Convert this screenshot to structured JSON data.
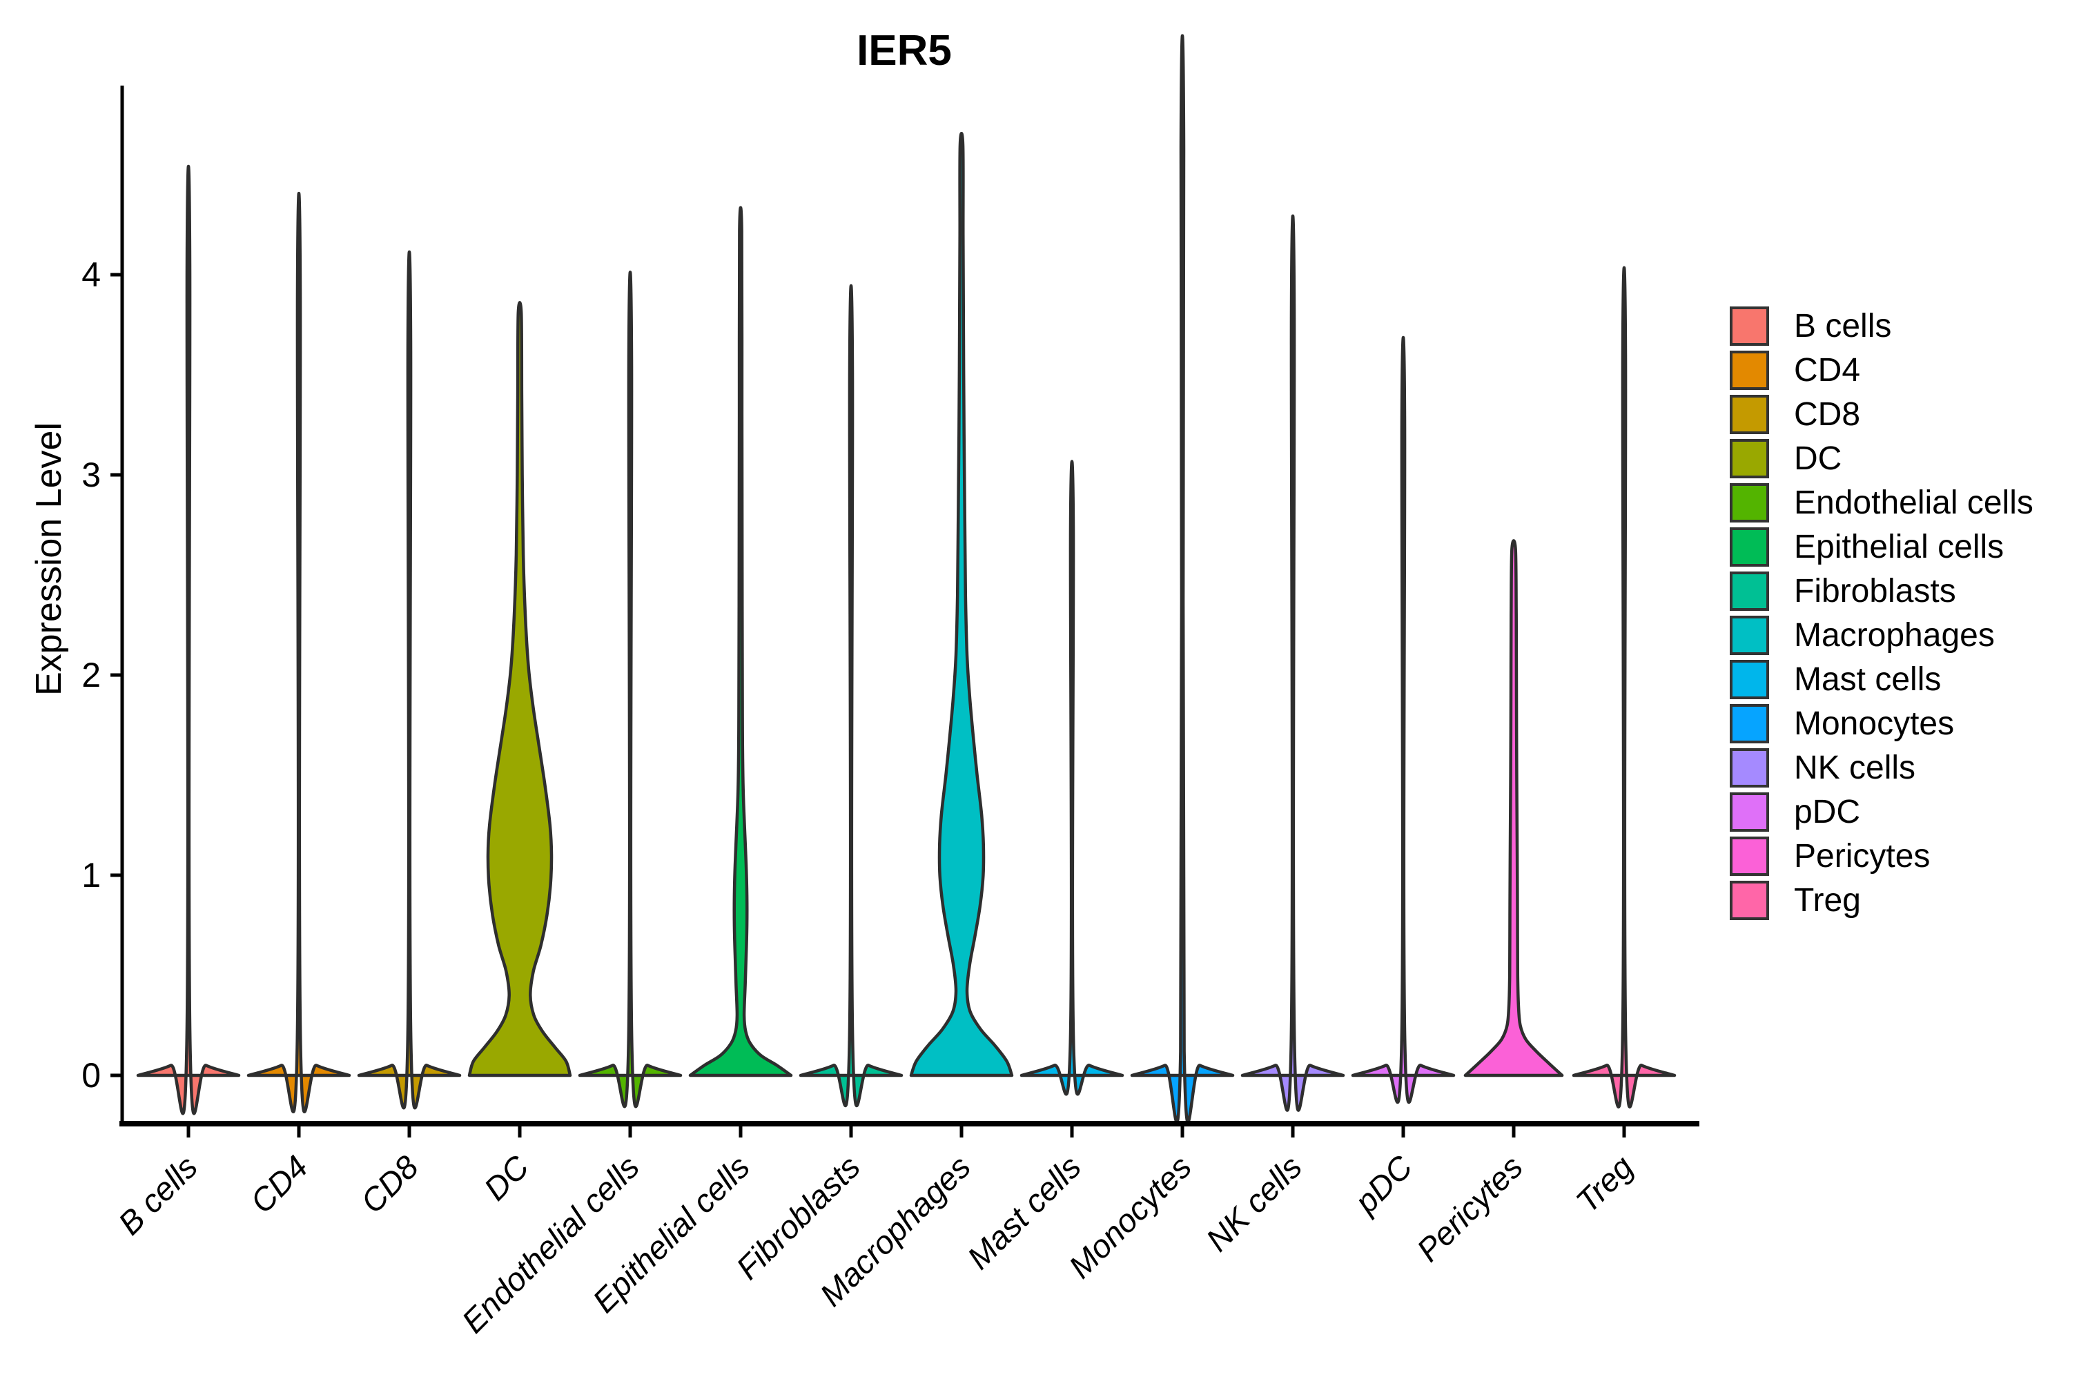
{
  "title": "IER5",
  "y_axis": {
    "label": "Expression Level",
    "tick_labels": [
      "0",
      "1",
      "2",
      "3",
      "4"
    ]
  },
  "colors": {
    "violin_stroke": "#2e2e2e",
    "axis": "#000000",
    "legend_swatch_border": "#333333"
  },
  "legend": {
    "items": [
      {
        "label": "B cells",
        "color": "#F8766D"
      },
      {
        "label": "CD4",
        "color": "#E38900"
      },
      {
        "label": "CD8",
        "color": "#C49A00"
      },
      {
        "label": "DC",
        "color": "#99A800"
      },
      {
        "label": "Endothelial cells",
        "color": "#53B400"
      },
      {
        "label": "Epithelial cells",
        "color": "#00BC56"
      },
      {
        "label": "Fibroblasts",
        "color": "#00C094"
      },
      {
        "label": "Macrophages",
        "color": "#00BFC4"
      },
      {
        "label": "Mast cells",
        "color": "#00B6EB"
      },
      {
        "label": "Monocytes",
        "color": "#06A4FF"
      },
      {
        "label": "NK cells",
        "color": "#A58AFF"
      },
      {
        "label": "pDC",
        "color": "#DF70F8"
      },
      {
        "label": "Pericytes",
        "color": "#FB61D7"
      },
      {
        "label": "Treg",
        "color": "#FF66A8"
      }
    ]
  },
  "chart_data": {
    "type": "violin",
    "title": "IER5",
    "xlabel": "",
    "ylabel": "Expression Level",
    "ylim": [
      -0.28,
      4.95
    ],
    "yticks": [
      0,
      1,
      2,
      3,
      4
    ],
    "grid": false,
    "legend_position": "right",
    "categories": [
      "B cells",
      "CD4",
      "CD8",
      "DC",
      "Endothelial cells",
      "Epithelial cells",
      "Fibroblasts",
      "Macrophages",
      "Mast cells",
      "Monocytes",
      "NK cells",
      "pDC",
      "Pericytes",
      "Treg"
    ],
    "series": [
      {
        "name": "B cells",
        "color": "#F8766D",
        "max_expression": 4.05,
        "profile": [
          [
            0,
            1
          ],
          [
            0.05,
            0.35
          ],
          [
            0.12,
            0.035
          ],
          [
            4.05,
            0.028
          ]
        ]
      },
      {
        "name": "CD4",
        "color": "#E38900",
        "max_expression": 3.93,
        "profile": [
          [
            0,
            1
          ],
          [
            0.05,
            0.35
          ],
          [
            0.12,
            0.035
          ],
          [
            3.93,
            0.028
          ]
        ]
      },
      {
        "name": "CD8",
        "color": "#C49A00",
        "max_expression": 3.67,
        "profile": [
          [
            0,
            1
          ],
          [
            0.05,
            0.35
          ],
          [
            0.12,
            0.035
          ],
          [
            3.67,
            0.028
          ]
        ]
      },
      {
        "name": "DC",
        "color": "#99A800",
        "max_expression": 3.81,
        "profile": [
          [
            0,
            1
          ],
          [
            0.07,
            0.92
          ],
          [
            0.14,
            0.7
          ],
          [
            0.22,
            0.45
          ],
          [
            0.3,
            0.28
          ],
          [
            0.4,
            0.21
          ],
          [
            0.52,
            0.27
          ],
          [
            0.65,
            0.42
          ],
          [
            0.8,
            0.54
          ],
          [
            0.95,
            0.61
          ],
          [
            1.1,
            0.63
          ],
          [
            1.25,
            0.6
          ],
          [
            1.45,
            0.5
          ],
          [
            1.65,
            0.38
          ],
          [
            1.85,
            0.26
          ],
          [
            2.05,
            0.17
          ],
          [
            2.3,
            0.11
          ],
          [
            2.6,
            0.07
          ],
          [
            3.0,
            0.05
          ],
          [
            3.4,
            0.04
          ],
          [
            3.81,
            0.03
          ]
        ]
      },
      {
        "name": "Endothelial cells",
        "color": "#53B400",
        "max_expression": 3.58,
        "profile": [
          [
            0,
            1
          ],
          [
            0.05,
            0.35
          ],
          [
            0.12,
            0.035
          ],
          [
            3.58,
            0.028
          ]
        ]
      },
      {
        "name": "Epithelial cells",
        "color": "#00BC56",
        "max_expression": 4.22,
        "profile": [
          [
            0,
            1
          ],
          [
            0.05,
            0.72
          ],
          [
            0.1,
            0.4
          ],
          [
            0.16,
            0.19
          ],
          [
            0.22,
            0.1
          ],
          [
            0.3,
            0.07
          ],
          [
            0.45,
            0.09
          ],
          [
            0.6,
            0.11
          ],
          [
            0.75,
            0.125
          ],
          [
            0.9,
            0.125
          ],
          [
            1.05,
            0.11
          ],
          [
            1.2,
            0.085
          ],
          [
            1.35,
            0.06
          ],
          [
            1.5,
            0.045
          ],
          [
            1.8,
            0.035
          ],
          [
            2.5,
            0.03
          ],
          [
            3.3,
            0.026
          ],
          [
            4.22,
            0.022
          ]
        ]
      },
      {
        "name": "Fibroblasts",
        "color": "#00C094",
        "max_expression": 3.52,
        "profile": [
          [
            0,
            1
          ],
          [
            0.05,
            0.35
          ],
          [
            0.12,
            0.035
          ],
          [
            3.52,
            0.028
          ]
        ]
      },
      {
        "name": "Macrophages",
        "color": "#00BFC4",
        "max_expression": 4.65,
        "profile": [
          [
            0,
            1
          ],
          [
            0.07,
            0.9
          ],
          [
            0.15,
            0.66
          ],
          [
            0.23,
            0.38
          ],
          [
            0.32,
            0.17
          ],
          [
            0.42,
            0.11
          ],
          [
            0.55,
            0.16
          ],
          [
            0.7,
            0.27
          ],
          [
            0.85,
            0.37
          ],
          [
            1.0,
            0.43
          ],
          [
            1.15,
            0.435
          ],
          [
            1.3,
            0.4
          ],
          [
            1.5,
            0.31
          ],
          [
            1.7,
            0.23
          ],
          [
            1.9,
            0.16
          ],
          [
            2.1,
            0.11
          ],
          [
            2.4,
            0.08
          ],
          [
            2.8,
            0.065
          ],
          [
            3.2,
            0.05
          ],
          [
            3.7,
            0.04
          ],
          [
            4.2,
            0.032
          ],
          [
            4.65,
            0.028
          ]
        ]
      },
      {
        "name": "Mast cells",
        "color": "#00B6EB",
        "max_expression": 2.74,
        "profile": [
          [
            0,
            1
          ],
          [
            0.05,
            0.35
          ],
          [
            0.12,
            0.035
          ],
          [
            2.74,
            0.028
          ]
        ]
      },
      {
        "name": "Monocytes",
        "color": "#06A4FF",
        "max_expression": 4.63,
        "profile": [
          [
            0,
            1
          ],
          [
            0.05,
            0.35
          ],
          [
            0.12,
            0.035
          ],
          [
            4.63,
            0.028
          ]
        ]
      },
      {
        "name": "NK cells",
        "color": "#A58AFF",
        "max_expression": 3.83,
        "profile": [
          [
            0,
            1
          ],
          [
            0.05,
            0.35
          ],
          [
            0.12,
            0.035
          ],
          [
            3.83,
            0.028
          ]
        ]
      },
      {
        "name": "pDC",
        "color": "#DF70F8",
        "max_expression": 3.29,
        "profile": [
          [
            0,
            1
          ],
          [
            0.05,
            0.35
          ],
          [
            0.12,
            0.035
          ],
          [
            3.29,
            0.028
          ]
        ]
      },
      {
        "name": "Pericytes",
        "color": "#FB61D7",
        "max_expression": 2.63,
        "profile": [
          [
            0,
            0.96
          ],
          [
            0.06,
            0.7
          ],
          [
            0.12,
            0.45
          ],
          [
            0.18,
            0.24
          ],
          [
            0.25,
            0.13
          ],
          [
            0.35,
            0.095
          ],
          [
            0.5,
            0.08
          ],
          [
            0.8,
            0.075
          ],
          [
            1.1,
            0.07
          ],
          [
            1.5,
            0.06
          ],
          [
            1.9,
            0.055
          ],
          [
            2.3,
            0.05
          ],
          [
            2.63,
            0.035
          ]
        ]
      },
      {
        "name": "Treg",
        "color": "#FF66A8",
        "max_expression": 3.6,
        "profile": [
          [
            0,
            1
          ],
          [
            0.05,
            0.35
          ],
          [
            0.12,
            0.035
          ],
          [
            3.6,
            0.028
          ]
        ]
      }
    ]
  }
}
